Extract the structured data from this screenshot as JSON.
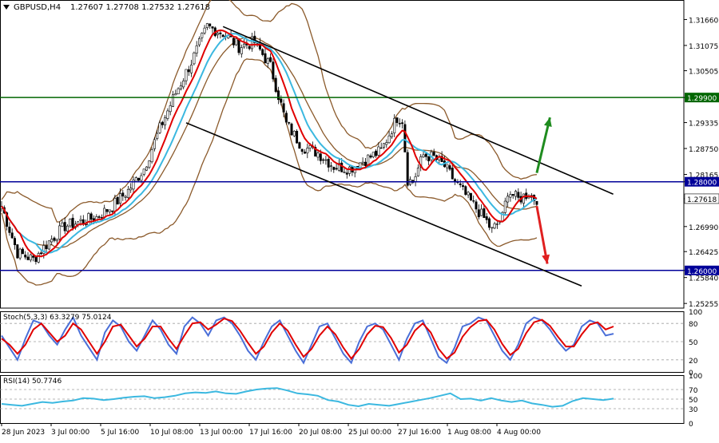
{
  "header": {
    "symbol": "GBPUSD,H4",
    "ohlc": "1.27607 1.27708 1.27532 1.27618"
  },
  "stoch_label": "Stoch(5,3,3) 63.3279 75.0124",
  "rsi_label": "RSI(14) 50.7746",
  "colors": {
    "background": "#ffffff",
    "candle_up": "#ffffff",
    "candle_down": "#000000",
    "bollinger": "#8b5a2b",
    "fast_ma": "#e00000",
    "slow_ma": "#3bb8e0",
    "channel": "#000000",
    "level_blue": "#000099",
    "level_green": "#006600",
    "arrow_up": "#1f8c1f",
    "arrow_down": "#e02020",
    "stoch_main": "#4a6fd8",
    "stoch_signal": "#e00000",
    "rsi": "#3bb8e0"
  },
  "chart_data": [
    {
      "type": "candlestick",
      "series": [
        {
          "name": "GBPUSD,H4"
        }
      ],
      "x_labels": [
        "28 Jun 2023",
        "3 Jul 00:00",
        "5 Jul 16:00",
        "10 Jul 08:00",
        "13 Jul 00:00",
        "17 Jul 16:00",
        "20 Jul 08:00",
        "25 Jul 00:00",
        "27 Jul 16:00",
        "1 Aug 08:00",
        "4 Aug 00:00"
      ],
      "y_ticks": [
        "1.31660",
        "1.31075",
        "1.30505",
        "1.29900",
        "1.29335",
        "1.28750",
        "1.28165",
        "1.28000",
        "1.27618",
        "1.26990",
        "1.26425",
        "1.26000",
        "1.25840",
        "1.25255"
      ],
      "ylim": [
        1.2515,
        1.321
      ],
      "current_price": 1.27618,
      "close_path": [
        [
          0,
          1.2745
        ],
        [
          6,
          1.264
        ],
        [
          12,
          1.2625
        ],
        [
          18,
          1.2665
        ],
        [
          24,
          1.27
        ],
        [
          30,
          1.271
        ],
        [
          36,
          1.272
        ],
        [
          42,
          1.2745
        ],
        [
          48,
          1.278
        ],
        [
          54,
          1.283
        ],
        [
          60,
          1.292
        ],
        [
          66,
          1.3
        ],
        [
          72,
          1.307
        ],
        [
          78,
          1.315
        ],
        [
          84,
          1.3135
        ],
        [
          90,
          1.3105
        ],
        [
          96,
          1.3115
        ],
        [
          102,
          1.306
        ],
        [
          108,
          1.293
        ],
        [
          114,
          1.288
        ],
        [
          120,
          1.2865
        ],
        [
          126,
          1.2835
        ],
        [
          132,
          1.283
        ],
        [
          138,
          1.285
        ],
        [
          144,
          1.287
        ],
        [
          150,
          1.2945
        ],
        [
          152,
          1.294
        ],
        [
          154,
          1.2805
        ],
        [
          156,
          1.28
        ],
        [
          160,
          1.286
        ],
        [
          164,
          1.2855
        ],
        [
          168,
          1.2835
        ],
        [
          172,
          1.28
        ],
        [
          176,
          1.277
        ],
        [
          180,
          1.274
        ],
        [
          184,
          1.271
        ],
        [
          186,
          1.269
        ],
        [
          190,
          1.272
        ],
        [
          192,
          1.278
        ],
        [
          196,
          1.276
        ],
        [
          200,
          1.2775
        ],
        [
          202,
          1.2762
        ]
      ],
      "levels": [
        {
          "price": 1.299,
          "label": "1.29900",
          "color": "level_green"
        },
        {
          "price": 1.28,
          "label": "1.28000",
          "color": "level_blue"
        },
        {
          "price": 1.26,
          "label": "1.26000",
          "color": "level_blue"
        }
      ],
      "channel": {
        "upper": [
          [
            84,
            1.315
          ],
          [
            232,
            1.2772
          ]
        ],
        "lower": [
          [
            70,
            1.2933
          ],
          [
            220,
            1.2565
          ]
        ]
      },
      "arrows": [
        {
          "direction": "up",
          "from": [
            203,
            1.282
          ],
          "to": [
            208,
            1.2945
          ]
        },
        {
          "direction": "down",
          "from": [
            203,
            1.2745
          ],
          "to": [
            207,
            1.2615
          ]
        }
      ]
    },
    {
      "type": "line",
      "title": "Stoch(5,3,3) 63.3279 75.0124",
      "ylim": [
        0,
        100
      ],
      "y_ticks": [
        100,
        80,
        50,
        20,
        0
      ],
      "series": [
        {
          "color": "stoch_main",
          "values": [
            60,
            40,
            20,
            55,
            85,
            80,
            60,
            45,
            70,
            90,
            60,
            40,
            20,
            65,
            85,
            75,
            50,
            35,
            60,
            85,
            70,
            45,
            30,
            75,
            90,
            80,
            60,
            85,
            90,
            80,
            60,
            35,
            20,
            50,
            75,
            85,
            60,
            35,
            15,
            45,
            75,
            80,
            55,
            30,
            15,
            50,
            75,
            80,
            70,
            45,
            20,
            55,
            80,
            85,
            55,
            25,
            15,
            40,
            75,
            80,
            90,
            85,
            60,
            35,
            20,
            45,
            80,
            90,
            85,
            70,
            50,
            35,
            45,
            75,
            85,
            80,
            60,
            63
          ]
        },
        {
          "color": "stoch_signal",
          "values": [
            55,
            45,
            30,
            45,
            70,
            80,
            65,
            50,
            60,
            80,
            70,
            50,
            30,
            50,
            75,
            78,
            60,
            42,
            55,
            75,
            75,
            55,
            38,
            60,
            80,
            82,
            70,
            78,
            88,
            84,
            68,
            48,
            30,
            42,
            65,
            80,
            68,
            45,
            25,
            38,
            60,
            75,
            62,
            40,
            22,
            38,
            62,
            76,
            74,
            56,
            32,
            45,
            68,
            80,
            65,
            38,
            22,
            32,
            58,
            74,
            84,
            86,
            70,
            46,
            28,
            38,
            64,
            82,
            86,
            76,
            58,
            42,
            42,
            62,
            78,
            82,
            70,
            75
          ]
        }
      ]
    },
    {
      "type": "line",
      "title": "RSI(14) 50.7746",
      "ylim": [
        0,
        100
      ],
      "y_ticks": [
        100,
        70,
        50,
        30,
        0
      ],
      "series": [
        {
          "color": "rsi",
          "values": [
            40,
            38,
            36,
            40,
            44,
            42,
            45,
            47,
            52,
            51,
            48,
            50,
            53,
            55,
            56,
            52,
            54,
            57,
            62,
            64,
            63,
            66,
            62,
            61,
            66,
            70,
            72,
            73,
            68,
            62,
            60,
            57,
            48,
            45,
            38,
            35,
            40,
            38,
            36,
            40,
            44,
            48,
            52,
            57,
            62,
            50,
            51,
            47,
            52,
            47,
            44,
            47,
            41,
            38,
            34,
            36,
            46,
            52,
            50,
            48,
            51
          ]
        }
      ]
    }
  ]
}
